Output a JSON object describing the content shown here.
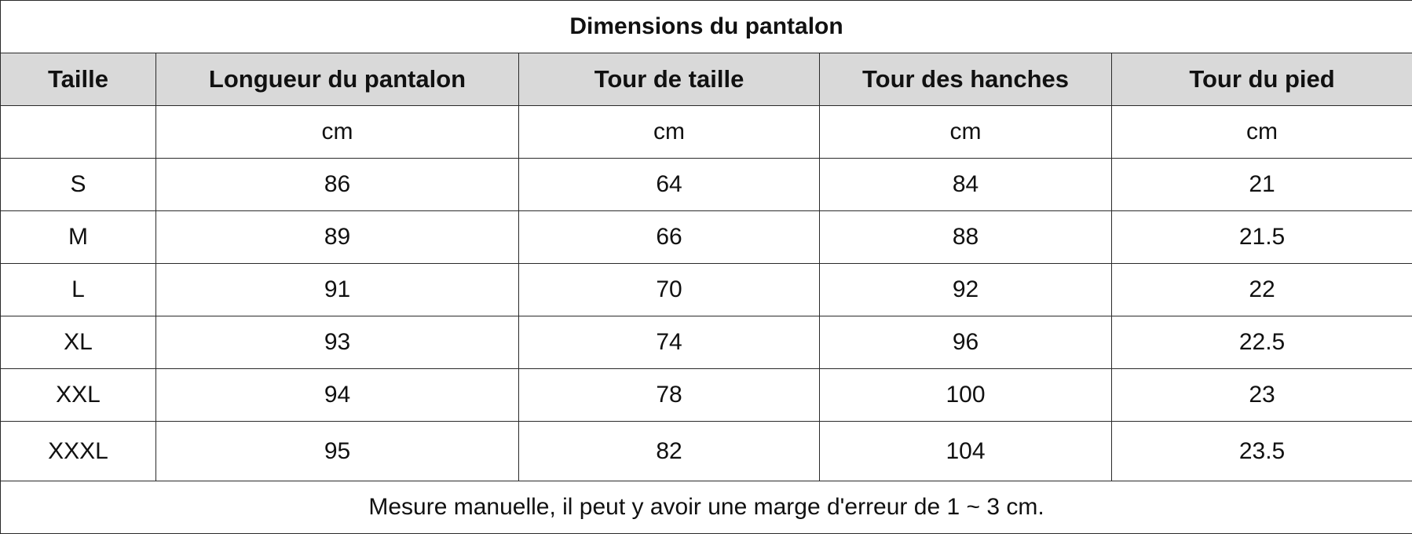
{
  "title": "Dimensions du pantalon",
  "columns": [
    "Taille",
    "Longueur du pantalon",
    "Tour de taille",
    "Tour des hanches",
    "Tour du pied"
  ],
  "units": [
    "",
    "cm",
    "cm",
    "cm",
    "cm"
  ],
  "rows": [
    [
      "S",
      "86",
      "64",
      "84",
      "21"
    ],
    [
      "M",
      "89",
      "66",
      "88",
      "21.5"
    ],
    [
      "L",
      "91",
      "70",
      "92",
      "22"
    ],
    [
      "XL",
      "93",
      "74",
      "96",
      "22.5"
    ],
    [
      "XXL",
      "94",
      "78",
      "100",
      "23"
    ],
    [
      "XXXL",
      "95",
      "82",
      "104",
      "23.5"
    ]
  ],
  "note": "Mesure manuelle, il peut y avoir une marge d'erreur de 1 ~ 3 cm.",
  "colors": {
    "header_background": "#d9d9d9",
    "border": "#2a2a2a",
    "background": "#ffffff",
    "text": "#111111"
  }
}
